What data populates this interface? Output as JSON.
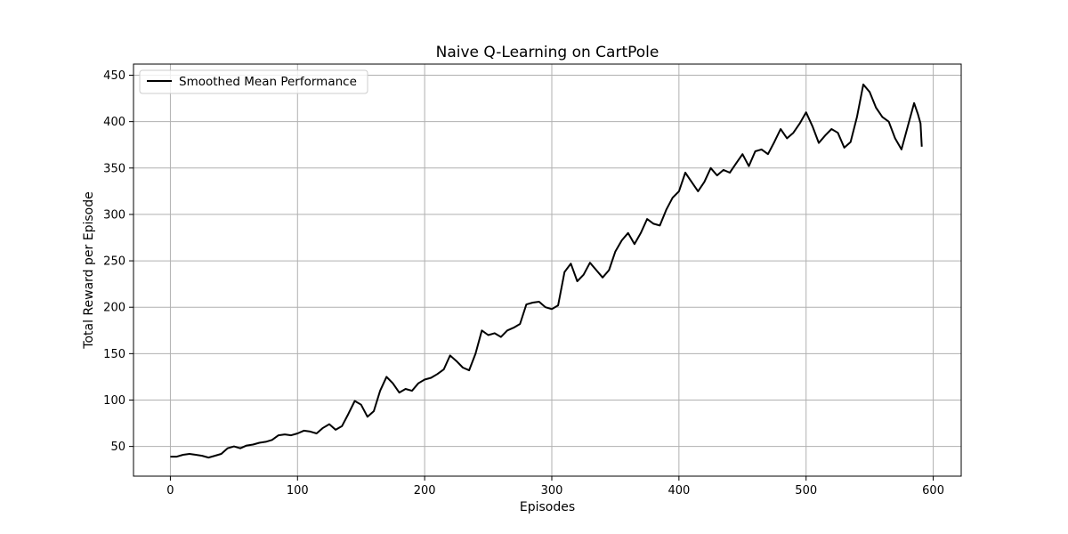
{
  "chart_data": {
    "type": "line",
    "title": "Naive Q-Learning on CartPole",
    "xlabel": "Episodes",
    "ylabel": "Total Reward per Episode",
    "xlim": [
      -29,
      622
    ],
    "ylim": [
      18,
      462
    ],
    "xticks": [
      0,
      100,
      200,
      300,
      400,
      500,
      600
    ],
    "yticks": [
      50,
      100,
      150,
      200,
      250,
      300,
      350,
      400,
      450
    ],
    "grid": true,
    "legend_position": "top-left",
    "line_color": "#000000",
    "grid_color": "#b0b0b0",
    "series": [
      {
        "name": "Smoothed Mean Performance",
        "points": [
          [
            0,
            39
          ],
          [
            5,
            39
          ],
          [
            10,
            41
          ],
          [
            15,
            42
          ],
          [
            20,
            41
          ],
          [
            25,
            40
          ],
          [
            30,
            38
          ],
          [
            35,
            40
          ],
          [
            40,
            42
          ],
          [
            45,
            48
          ],
          [
            50,
            50
          ],
          [
            55,
            48
          ],
          [
            60,
            51
          ],
          [
            65,
            52
          ],
          [
            70,
            54
          ],
          [
            75,
            55
          ],
          [
            80,
            57
          ],
          [
            85,
            62
          ],
          [
            90,
            63
          ],
          [
            95,
            62
          ],
          [
            100,
            64
          ],
          [
            105,
            67
          ],
          [
            110,
            66
          ],
          [
            115,
            64
          ],
          [
            120,
            70
          ],
          [
            125,
            74
          ],
          [
            130,
            68
          ],
          [
            135,
            72
          ],
          [
            140,
            85
          ],
          [
            145,
            99
          ],
          [
            150,
            95
          ],
          [
            155,
            82
          ],
          [
            160,
            88
          ],
          [
            165,
            110
          ],
          [
            170,
            125
          ],
          [
            175,
            118
          ],
          [
            180,
            108
          ],
          [
            185,
            112
          ],
          [
            190,
            110
          ],
          [
            195,
            118
          ],
          [
            200,
            122
          ],
          [
            205,
            124
          ],
          [
            210,
            128
          ],
          [
            215,
            133
          ],
          [
            220,
            148
          ],
          [
            225,
            142
          ],
          [
            230,
            135
          ],
          [
            235,
            132
          ],
          [
            240,
            150
          ],
          [
            245,
            175
          ],
          [
            250,
            170
          ],
          [
            255,
            172
          ],
          [
            260,
            168
          ],
          [
            265,
            175
          ],
          [
            270,
            178
          ],
          [
            275,
            182
          ],
          [
            280,
            203
          ],
          [
            285,
            205
          ],
          [
            290,
            206
          ],
          [
            295,
            200
          ],
          [
            300,
            198
          ],
          [
            305,
            202
          ],
          [
            310,
            238
          ],
          [
            315,
            247
          ],
          [
            320,
            228
          ],
          [
            325,
            235
          ],
          [
            330,
            248
          ],
          [
            335,
            240
          ],
          [
            340,
            232
          ],
          [
            345,
            240
          ],
          [
            350,
            260
          ],
          [
            355,
            272
          ],
          [
            360,
            280
          ],
          [
            365,
            268
          ],
          [
            370,
            280
          ],
          [
            375,
            295
          ],
          [
            380,
            290
          ],
          [
            385,
            288
          ],
          [
            390,
            305
          ],
          [
            395,
            318
          ],
          [
            400,
            325
          ],
          [
            405,
            345
          ],
          [
            410,
            335
          ],
          [
            415,
            325
          ],
          [
            420,
            335
          ],
          [
            425,
            350
          ],
          [
            430,
            342
          ],
          [
            435,
            348
          ],
          [
            440,
            345
          ],
          [
            445,
            355
          ],
          [
            450,
            365
          ],
          [
            455,
            352
          ],
          [
            460,
            368
          ],
          [
            465,
            370
          ],
          [
            470,
            365
          ],
          [
            475,
            378
          ],
          [
            480,
            392
          ],
          [
            485,
            382
          ],
          [
            490,
            388
          ],
          [
            495,
            398
          ],
          [
            500,
            410
          ],
          [
            505,
            395
          ],
          [
            510,
            377
          ],
          [
            515,
            385
          ],
          [
            520,
            392
          ],
          [
            525,
            388
          ],
          [
            530,
            372
          ],
          [
            535,
            378
          ],
          [
            540,
            405
          ],
          [
            545,
            440
          ],
          [
            550,
            432
          ],
          [
            555,
            415
          ],
          [
            560,
            405
          ],
          [
            565,
            400
          ],
          [
            570,
            382
          ],
          [
            575,
            370
          ],
          [
            580,
            395
          ],
          [
            585,
            420
          ],
          [
            588,
            408
          ],
          [
            590,
            398
          ],
          [
            591,
            373
          ]
        ]
      }
    ]
  }
}
